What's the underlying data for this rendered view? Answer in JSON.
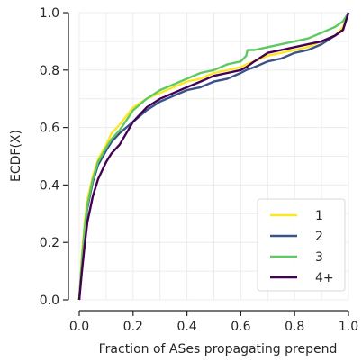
{
  "chart_data": {
    "type": "line",
    "title": "",
    "xlabel": "Fraction of ASes propagating prepend",
    "ylabel": "ECDF(X)",
    "xlim": [
      0.0,
      1.0
    ],
    "ylim": [
      0.0,
      1.0
    ],
    "xticks": [
      "0.0",
      "0.2",
      "0.4",
      "0.6",
      "0.8",
      "1.0"
    ],
    "yticks": [
      "0.0",
      "0.2",
      "0.4",
      "0.6",
      "0.8",
      "1.0"
    ],
    "grid": true,
    "legend_position": "bottom-right",
    "series": [
      {
        "name": "1",
        "color": "#fde725",
        "x": [
          0.0,
          0.01,
          0.02,
          0.03,
          0.05,
          0.07,
          0.1,
          0.12,
          0.15,
          0.2,
          0.25,
          0.3,
          0.35,
          0.4,
          0.45,
          0.5,
          0.55,
          0.6,
          0.62,
          0.65,
          0.7,
          0.75,
          0.8,
          0.85,
          0.9,
          0.95,
          0.98,
          1.0
        ],
        "y": [
          0.0,
          0.16,
          0.27,
          0.35,
          0.43,
          0.49,
          0.54,
          0.58,
          0.61,
          0.67,
          0.7,
          0.72,
          0.74,
          0.76,
          0.77,
          0.79,
          0.8,
          0.81,
          0.82,
          0.83,
          0.85,
          0.86,
          0.87,
          0.88,
          0.9,
          0.92,
          0.95,
          1.0
        ]
      },
      {
        "name": "2",
        "color": "#3b528b",
        "x": [
          0.0,
          0.01,
          0.02,
          0.03,
          0.05,
          0.07,
          0.1,
          0.12,
          0.15,
          0.2,
          0.25,
          0.3,
          0.35,
          0.4,
          0.45,
          0.5,
          0.55,
          0.6,
          0.62,
          0.65,
          0.7,
          0.75,
          0.8,
          0.85,
          0.9,
          0.95,
          0.98,
          1.0
        ],
        "y": [
          0.0,
          0.13,
          0.24,
          0.32,
          0.41,
          0.47,
          0.52,
          0.55,
          0.58,
          0.62,
          0.66,
          0.69,
          0.71,
          0.73,
          0.74,
          0.76,
          0.77,
          0.79,
          0.8,
          0.81,
          0.83,
          0.84,
          0.86,
          0.87,
          0.89,
          0.92,
          0.94,
          1.0
        ]
      },
      {
        "name": "3",
        "color": "#5ec962",
        "x": [
          0.0,
          0.01,
          0.02,
          0.03,
          0.05,
          0.07,
          0.1,
          0.12,
          0.15,
          0.2,
          0.25,
          0.3,
          0.35,
          0.4,
          0.45,
          0.5,
          0.55,
          0.6,
          0.62,
          0.625,
          0.65,
          0.7,
          0.75,
          0.8,
          0.85,
          0.9,
          0.95,
          0.98,
          1.0
        ],
        "y": [
          0.0,
          0.14,
          0.25,
          0.33,
          0.42,
          0.48,
          0.53,
          0.56,
          0.59,
          0.66,
          0.7,
          0.73,
          0.75,
          0.77,
          0.79,
          0.8,
          0.82,
          0.83,
          0.85,
          0.87,
          0.87,
          0.88,
          0.89,
          0.9,
          0.91,
          0.93,
          0.95,
          0.97,
          1.0
        ]
      },
      {
        "name": "4+",
        "color": "#440154",
        "x": [
          0.0,
          0.01,
          0.02,
          0.03,
          0.05,
          0.07,
          0.1,
          0.12,
          0.15,
          0.2,
          0.25,
          0.3,
          0.35,
          0.4,
          0.45,
          0.5,
          0.55,
          0.6,
          0.62,
          0.65,
          0.7,
          0.75,
          0.8,
          0.85,
          0.9,
          0.95,
          0.98,
          1.0
        ],
        "y": [
          0.0,
          0.1,
          0.19,
          0.27,
          0.36,
          0.42,
          0.48,
          0.51,
          0.54,
          0.62,
          0.67,
          0.7,
          0.72,
          0.74,
          0.76,
          0.78,
          0.79,
          0.8,
          0.81,
          0.83,
          0.86,
          0.87,
          0.88,
          0.89,
          0.9,
          0.92,
          0.94,
          1.0
        ]
      }
    ]
  }
}
